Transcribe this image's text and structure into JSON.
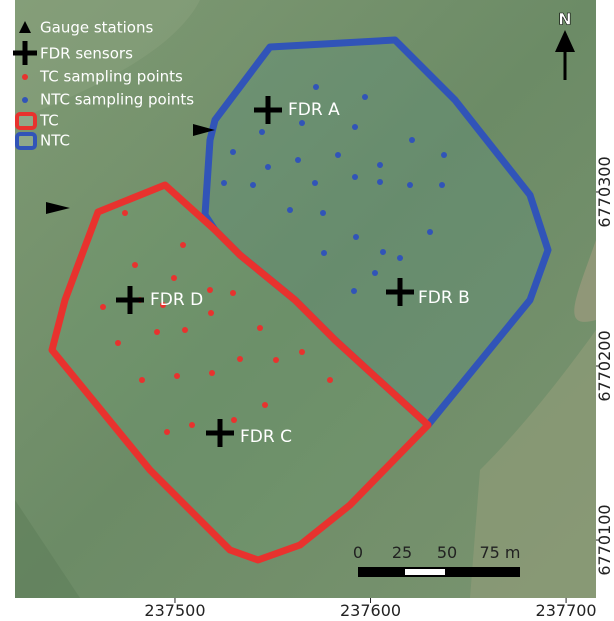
{
  "map": {
    "legend": [
      "Gauge stations",
      "FDR sensors",
      "TC sampling points",
      "NTC sampling points",
      "TC",
      "NTC"
    ],
    "sensors": [
      "FDR A",
      "FDR B",
      "FDR C",
      "FDR D"
    ],
    "north": "N",
    "scale_bar": [
      "0",
      "25",
      "50",
      "75 m"
    ],
    "xlim": [
      237418.2,
      237715.3
    ],
    "xticks": [
      237500,
      237600,
      237700
    ],
    "ylim": [
      6770066.7,
      6770410.3
    ],
    "yticks": [
      6770100,
      6770200,
      6770300
    ]
  }
}
